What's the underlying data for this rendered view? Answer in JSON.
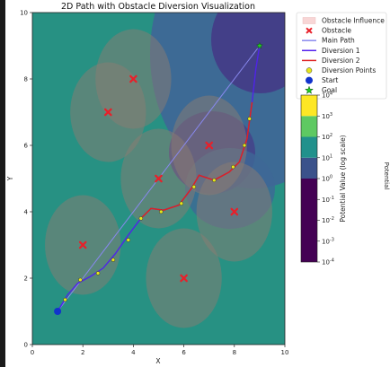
{
  "chart_data": {
    "type": "line",
    "title": "2D Path with Obstacle Diversion Visualization",
    "xlabel": "X",
    "ylabel": "Y",
    "xlim": [
      0,
      10
    ],
    "ylim": [
      0,
      10
    ],
    "xticks": [
      "0",
      "2",
      "4",
      "6",
      "8",
      "10"
    ],
    "yticks": [
      "0",
      "2",
      "4",
      "6",
      "8",
      "10"
    ],
    "grid": false,
    "legend_position": "outside-top-right",
    "obstacles": [
      {
        "x": 4,
        "y": 8,
        "radius": 1.5
      },
      {
        "x": 3,
        "y": 7,
        "radius": 1.5
      },
      {
        "x": 7,
        "y": 6,
        "radius": 1.5
      },
      {
        "x": 5,
        "y": 5,
        "radius": 1.5
      },
      {
        "x": 8,
        "y": 4,
        "radius": 1.5
      },
      {
        "x": 2,
        "y": 3,
        "radius": 1.5
      },
      {
        "x": 6,
        "y": 2,
        "radius": 1.5
      }
    ],
    "start": {
      "x": 1,
      "y": 1
    },
    "goal": {
      "x": 9,
      "y": 9
    },
    "main_path": [
      [
        1,
        1
      ],
      [
        9,
        9
      ]
    ],
    "diversion_1": [
      [
        1,
        1
      ],
      [
        1.4,
        1.5
      ],
      [
        1.8,
        1.85
      ],
      [
        2.3,
        2.05
      ],
      [
        2.8,
        2.3
      ],
      [
        3.3,
        2.75
      ],
      [
        3.8,
        3.3
      ],
      [
        4.3,
        3.8
      ],
      [
        4.7,
        4.1
      ],
      [
        5.2,
        4.05
      ],
      [
        5.8,
        4.2
      ],
      [
        6.3,
        4.7
      ],
      [
        6.6,
        5.1
      ],
      [
        7.2,
        4.95
      ],
      [
        7.8,
        5.2
      ],
      [
        8.2,
        5.5
      ],
      [
        8.5,
        6.2
      ],
      [
        8.7,
        7.3
      ],
      [
        8.85,
        8.3
      ],
      [
        9,
        9
      ]
    ],
    "diversion_2": [
      [
        4.3,
        3.8
      ],
      [
        4.7,
        4.1
      ],
      [
        5.2,
        4.05
      ],
      [
        5.8,
        4.2
      ],
      [
        6.3,
        4.7
      ],
      [
        6.6,
        5.1
      ],
      [
        7.2,
        4.95
      ],
      [
        7.8,
        5.2
      ],
      [
        8.2,
        5.5
      ],
      [
        8.5,
        6.2
      ],
      [
        8.7,
        7.3
      ]
    ],
    "diversion_points": [
      [
        1.3,
        1.35
      ],
      [
        1.9,
        1.95
      ],
      [
        2.6,
        2.15
      ],
      [
        3.2,
        2.55
      ],
      [
        3.8,
        3.15
      ],
      [
        4.3,
        3.8
      ],
      [
        5.1,
        4.0
      ],
      [
        5.9,
        4.25
      ],
      [
        6.4,
        4.75
      ],
      [
        7.2,
        4.95
      ],
      [
        7.95,
        5.35
      ],
      [
        8.4,
        6.0
      ],
      [
        8.6,
        6.8
      ]
    ],
    "background_contours": [
      {
        "region": "upper-right",
        "center": [
          8.5,
          8.5
        ],
        "level": "low"
      },
      {
        "region": "center",
        "center": [
          6.5,
          6.0
        ],
        "level": "low"
      }
    ],
    "legend": [
      {
        "label": "Obstacle Influence",
        "marker": "patch",
        "color": "#f8d6d6"
      },
      {
        "label": "Obstacle",
        "marker": "x",
        "color": "#e8202a"
      },
      {
        "label": "Main Path",
        "marker": "line",
        "color": "#8888ee"
      },
      {
        "label": "Diversion 1",
        "marker": "line",
        "color": "#5522ee"
      },
      {
        "label": "Diversion 2",
        "marker": "line",
        "color": "#dd2222"
      },
      {
        "label": "Diversion Points",
        "marker": "circle",
        "color": "#e6e61a"
      },
      {
        "label": "Start",
        "marker": "circle",
        "color": "#1133cc"
      },
      {
        "label": "Goal",
        "marker": "star",
        "color": "#22cc22"
      }
    ],
    "colorbar": {
      "label": "Potential Value (log scale)",
      "scale": "log",
      "ticks": [
        "10^-4",
        "10^-3",
        "10^-2",
        "10^-1",
        "10^0",
        "10^1",
        "10^2",
        "10^3",
        "10^4"
      ],
      "bands": [
        {
          "from": "10^-4",
          "to": "10^0",
          "color": "#440154"
        },
        {
          "from": "10^0",
          "to": "10^1",
          "color": "#3b528b"
        },
        {
          "from": "10^1",
          "to": "10^2",
          "color": "#21918c"
        },
        {
          "from": "10^2",
          "to": "10^3",
          "color": "#5ec962"
        },
        {
          "from": "10^3",
          "to": "10^4",
          "color": "#fde725"
        }
      ]
    },
    "side_label": "Potential"
  }
}
